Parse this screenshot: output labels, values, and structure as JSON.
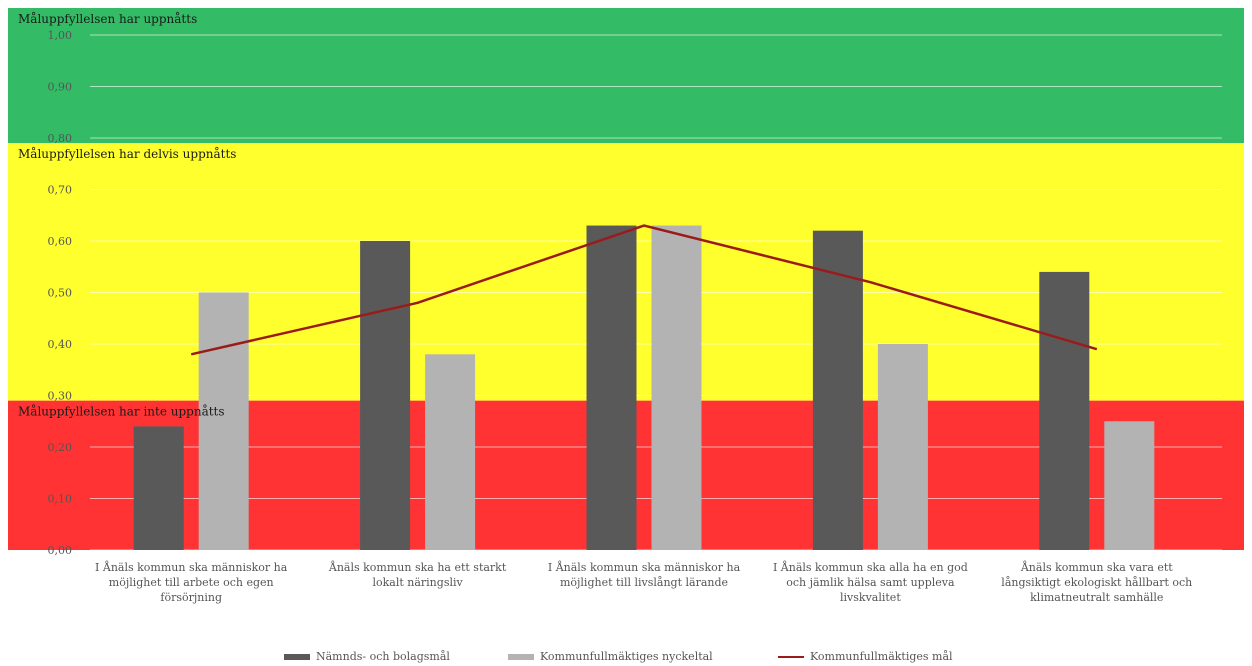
{
  "chart_data": {
    "type": "bar",
    "categories": [
      "I Ånäls kommun ska människor ha möjlighet till arbete och egen försörjning",
      "Ånäls kommun ska ha ett starkt lokalt näringsliv",
      "I Ånäls kommun ska människor ha möjlighet till livslångt lärande",
      "I Ånäls kommun ska alla ha en god och jämlik hälsa samt uppleva livskvalitet",
      "Ånäls kommun ska vara ett långsiktigt ekologiskt hållbart och klimatneutralt samhälle"
    ],
    "series": [
      {
        "name": "Nämnds- och bolagsmål",
        "type": "bar",
        "color": "#595959",
        "values": [
          0.24,
          0.6,
          0.63,
          0.62,
          0.54
        ]
      },
      {
        "name": "Kommunfullmäktiges nyckeltal",
        "type": "bar",
        "color": "#b3b3b3",
        "values": [
          0.5,
          0.38,
          0.63,
          0.4,
          0.25
        ]
      },
      {
        "name": "Kommunfullmäktiges mål",
        "type": "line",
        "color": "#9b1b1b",
        "values": [
          0.38,
          0.48,
          0.63,
          0.52,
          0.39
        ]
      }
    ],
    "ylim": [
      0,
      1.0
    ],
    "yticks": [
      "0,00",
      "0,10",
      "0,20",
      "0,30",
      "0,40",
      "0,50",
      "0,60",
      "0,70",
      "0,80",
      "0,90",
      "1,00"
    ],
    "grid": true,
    "legend_position": "bottom",
    "zones": [
      {
        "label": "Måluppfyllelsen har uppnåtts",
        "from": 0.79,
        "to": 1.07,
        "color": "#33bb66"
      },
      {
        "label": "Måluppfyllelsen har delvis uppnåtts",
        "from": 0.29,
        "to": 0.79,
        "color": "#ffff2e"
      },
      {
        "label": "Måluppfyllelsen har inte uppnåtts",
        "from": 0.0,
        "to": 0.29,
        "color": "#ff3333"
      }
    ]
  }
}
